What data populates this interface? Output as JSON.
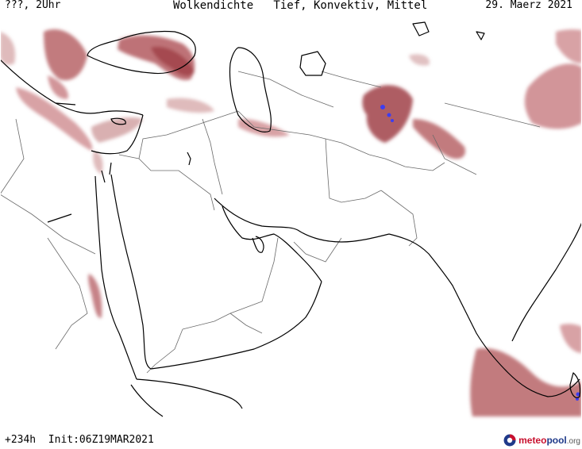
{
  "header": {
    "left": "???, 2Uhr",
    "center": "Wolkendichte   Tief, Konvektiv, Mittel",
    "right": "29. Maerz 2021"
  },
  "footer": {
    "init": "+234h  Init:06Z19MAR2021",
    "brand": {
      "part1": "meteo",
      "part2": "pool",
      "part3": ".org"
    }
  },
  "colors": {
    "cloud_dense": "#a3474d",
    "cloud_light": "#d59a9a",
    "convective": "#3d3df0",
    "coast": "#000000",
    "border": "#6a6a6a",
    "brand_red": "#c8102e",
    "brand_blue": "#1f3a8a"
  },
  "icons": {
    "brand_logo": "meteopool-logo-icon"
  }
}
